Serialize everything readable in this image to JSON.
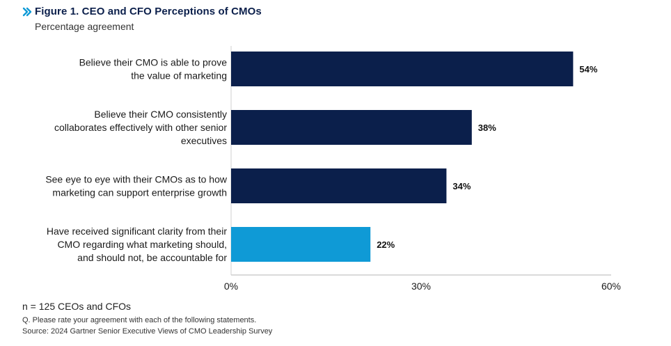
{
  "header": {
    "title": "Figure 1. CEO and CFO Perceptions of CMOs",
    "subtitle": "Percentage agreement",
    "icon": "double-chevron-right-icon"
  },
  "chart_data": {
    "type": "bar",
    "orientation": "horizontal",
    "categories": [
      [
        "Believe their CMO is able to prove",
        "the value of marketing"
      ],
      [
        "Believe their CMO consistently",
        "collaborates effectively with other senior",
        "executives"
      ],
      [
        "See eye to eye with their CMOs as to how",
        "marketing can support enterprise growth"
      ],
      [
        "Have received significant clarity from their",
        "CMO regarding what marketing should,",
        "and should not, be accountable for"
      ]
    ],
    "values": [
      54,
      38,
      34,
      22
    ],
    "value_labels": [
      "54%",
      "38%",
      "34%",
      "22%"
    ],
    "bar_colors": [
      "#0b1f4b",
      "#0b1f4b",
      "#0b1f4b",
      "#0f9ad6"
    ],
    "xlim": [
      0,
      60
    ],
    "x_ticks": [
      0,
      30,
      60
    ],
    "x_tick_labels": [
      "0%",
      "30%",
      "60%"
    ],
    "grid": false
  },
  "footer": {
    "note": "n = 125 CEOs and CFOs",
    "question": "Q. Please rate your agreement with each of the following statements.",
    "source": "Source: 2024 Gartner Senior Executive Views of CMO Leadership Survey"
  }
}
